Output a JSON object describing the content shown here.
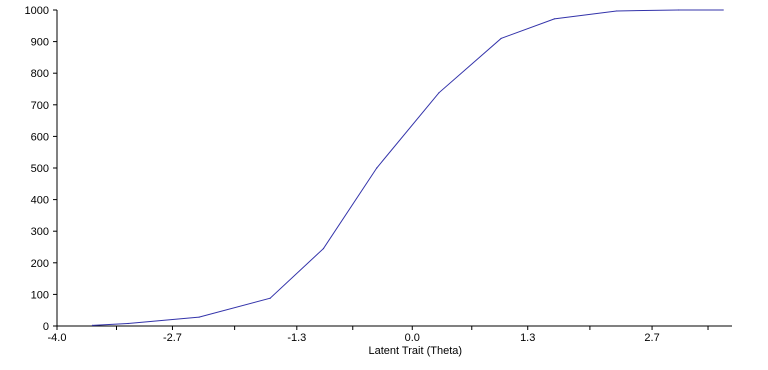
{
  "chart_data": {
    "type": "line",
    "title": "",
    "xlabel": "Latent Trait (Theta)",
    "ylabel": "",
    "xlim": [
      -4.0,
      3.6
    ],
    "ylim": [
      0,
      1000
    ],
    "x_ticks": [
      -4.0,
      -3.33,
      -2.7,
      -2.0,
      -1.3,
      -0.67,
      0.0,
      0.67,
      1.3,
      2.0,
      2.7,
      3.33
    ],
    "x_tick_labels": [
      "-4.0",
      "",
      "-2.7",
      "",
      "-1.3",
      "",
      "0.0",
      "",
      "1.3",
      "",
      "2.7",
      ""
    ],
    "y_ticks": [
      0,
      100,
      200,
      300,
      400,
      500,
      600,
      700,
      800,
      900,
      1000
    ],
    "y_tick_labels": [
      "0",
      "100",
      "200",
      "300",
      "400",
      "500",
      "600",
      "700",
      "800",
      "900",
      "1000"
    ],
    "grid": false,
    "colors": {
      "line": "#3333aa",
      "axis": "#000000"
    },
    "series": [
      {
        "x": [
          -3.6,
          -3.2,
          -2.4,
          -1.6,
          -1.0,
          -0.4,
          0.3,
          1.0,
          1.6,
          2.3,
          3.0,
          3.5
        ],
        "values": [
          2,
          8,
          28,
          88,
          245,
          500,
          738,
          910,
          972,
          997,
          1000,
          1000
        ]
      }
    ]
  }
}
